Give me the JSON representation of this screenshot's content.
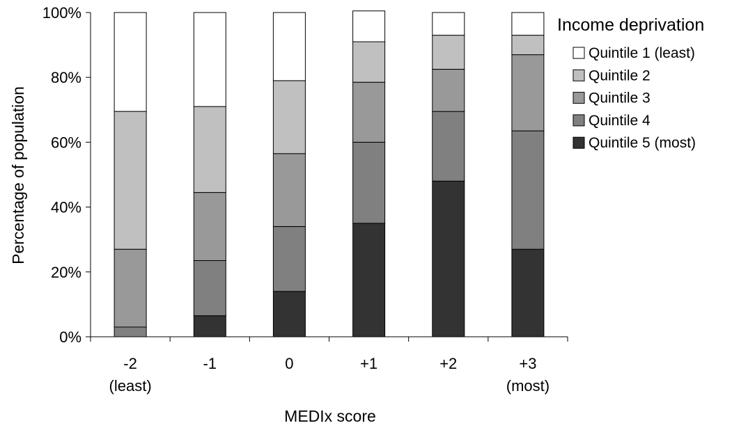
{
  "chart_data": {
    "type": "bar",
    "stacked": true,
    "percent": true,
    "categories": [
      [
        "-2",
        "(least)"
      ],
      [
        "-1"
      ],
      [
        "0"
      ],
      [
        "+1"
      ],
      [
        "+2"
      ],
      [
        "+3",
        "(most)"
      ]
    ],
    "xlabel": "MEDIx score",
    "ylabel": "Percentage of population",
    "ylim": [
      0,
      100
    ],
    "yticks": [
      "0%",
      "20%",
      "40%",
      "60%",
      "80%",
      "100%"
    ],
    "grid": false,
    "legend": {
      "title": "Income deprivation",
      "placement": "right"
    },
    "series": [
      {
        "name": "Quintile 5 (most)",
        "color": "#333333",
        "values": [
          0,
          6.5,
          14,
          35,
          48,
          27
        ]
      },
      {
        "name": "Quintile 4",
        "color": "#808080",
        "values": [
          3,
          17,
          20,
          25,
          21.5,
          36.5
        ]
      },
      {
        "name": "Quintile 3",
        "color": "#999999",
        "values": [
          24,
          21,
          22.5,
          18.5,
          13,
          23.5
        ]
      },
      {
        "name": "Quintile 2",
        "color": "#c0c0c0",
        "values": [
          42.5,
          26.5,
          22.5,
          12.5,
          10.5,
          6
        ]
      },
      {
        "name": "Quintile 1 (least)",
        "color": "#ffffff",
        "values": [
          30.5,
          29,
          21,
          9.5,
          7,
          7
        ]
      }
    ]
  }
}
